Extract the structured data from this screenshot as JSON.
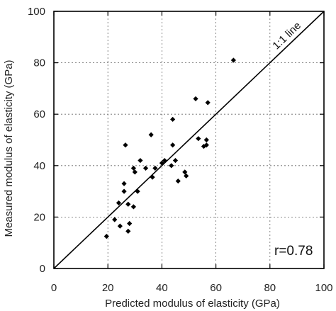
{
  "chart_data": {
    "type": "scatter",
    "xlabel": "Predicted modulus of elasticity (GPa)",
    "ylabel": "Measured modulus of elasticity (GPa)",
    "xlim": [
      0,
      100
    ],
    "ylim": [
      0,
      100
    ],
    "x_ticks": [
      0,
      20,
      40,
      60,
      80,
      100
    ],
    "y_ticks": [
      0,
      20,
      40,
      60,
      80,
      100
    ],
    "grid": true,
    "reference_line": {
      "label": "1:1 line",
      "x": [
        0,
        100
      ],
      "y": [
        0,
        100
      ]
    },
    "annotation": "r=0.78",
    "points": [
      [
        19.5,
        12.5
      ],
      [
        22.5,
        19
      ],
      [
        24.5,
        16.5
      ],
      [
        24,
        25.5
      ],
      [
        26,
        30
      ],
      [
        26,
        33
      ],
      [
        27.5,
        14.5
      ],
      [
        28,
        17.5
      ],
      [
        27.5,
        25
      ],
      [
        29.5,
        24
      ],
      [
        26.5,
        48
      ],
      [
        29.5,
        39
      ],
      [
        30,
        37.5
      ],
      [
        31,
        30
      ],
      [
        32,
        42
      ],
      [
        34,
        39
      ],
      [
        36,
        52
      ],
      [
        36.5,
        35.5
      ],
      [
        37.5,
        39
      ],
      [
        40,
        41
      ],
      [
        41,
        42
      ],
      [
        43.5,
        40
      ],
      [
        44,
        58
      ],
      [
        44,
        48
      ],
      [
        45,
        42
      ],
      [
        46,
        34
      ],
      [
        48.5,
        37.5
      ],
      [
        49,
        36
      ],
      [
        52.5,
        66
      ],
      [
        53.5,
        50.5
      ],
      [
        55.5,
        47.5
      ],
      [
        56.5,
        48
      ],
      [
        56.5,
        50
      ],
      [
        57,
        64.5
      ],
      [
        66.5,
        81
      ]
    ]
  }
}
